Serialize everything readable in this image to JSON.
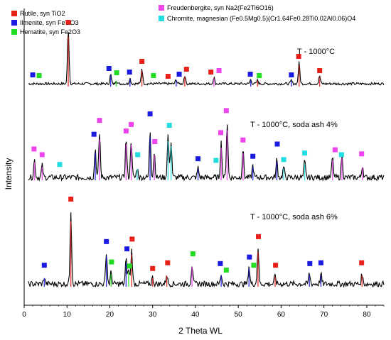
{
  "chart_data": {
    "type": "line",
    "xlabel": "2 Theta WL",
    "ylabel": "Intensity",
    "xlim": [
      0,
      84
    ],
    "x_ticks": [
      0,
      10,
      20,
      30,
      40,
      50,
      60,
      70,
      80
    ],
    "grid": false,
    "legend_position": "top",
    "legend": [
      {
        "label": "Rutile, syn TiO2",
        "color": "#e8201a"
      },
      {
        "label": "Ilmenite, syn FeTiO3",
        "color": "#1a1ae0"
      },
      {
        "label": "Hematite, syn Fe2O3",
        "color": "#22dd22"
      },
      {
        "label": "Freudenbergite, syn Na2(Fe2Ti6O16)",
        "color": "#ee44ee"
      },
      {
        "label": "Chromite, magnesian (Fe0.5Mg0.5)(Cr1.64Fe0.28Ti0.02Al0.06)O4",
        "color": "#22dddd"
      }
    ],
    "series": [
      {
        "label": "T - 1000°C",
        "baseline": 0.0,
        "noise": 0.018,
        "peaks": [
          {
            "x": 10.3,
            "h": 0.78,
            "phase": "rutile"
          },
          {
            "x": 27.5,
            "h": 0.22,
            "phase": "rutile"
          },
          {
            "x": 20.2,
            "h": 0.13,
            "phase": "ilmenite"
          },
          {
            "x": 21.5,
            "h": 0.05,
            "phase": "hematite"
          },
          {
            "x": 24.7,
            "h": 0.08,
            "phase": "ilmenite"
          },
          {
            "x": 37.5,
            "h": 0.12,
            "phase": "rutile"
          },
          {
            "x": 35.5,
            "h": 0.06,
            "phase": "ilmenite"
          },
          {
            "x": 44.3,
            "h": 0.09,
            "phase": "freudenbergite"
          },
          {
            "x": 52.9,
            "h": 0.06,
            "phase": "ilmenite"
          },
          {
            "x": 54.5,
            "h": 0.05,
            "phase": "rutile"
          },
          {
            "x": 62.4,
            "h": 0.05,
            "phase": "ilmenite"
          },
          {
            "x": 64.2,
            "h": 0.3,
            "phase": "rutile"
          },
          {
            "x": 69.0,
            "h": 0.11,
            "phase": "rutile"
          }
        ],
        "markers": [
          {
            "x": 2.0,
            "h": 0.08,
            "phase": "ilmenite"
          },
          {
            "x": 3.5,
            "h": 0.07,
            "phase": "hematite"
          },
          {
            "x": 10.3,
            "h": 0.82,
            "phase": "rutile"
          },
          {
            "x": 19.8,
            "h": 0.17,
            "phase": "ilmenite"
          },
          {
            "x": 21.6,
            "h": 0.11,
            "phase": "hematite"
          },
          {
            "x": 24.6,
            "h": 0.12,
            "phase": "ilmenite"
          },
          {
            "x": 27.5,
            "h": 0.27,
            "phase": "rutile"
          },
          {
            "x": 30.2,
            "h": 0.07,
            "phase": "hematite"
          },
          {
            "x": 33.6,
            "h": 0.06,
            "phase": "rutile"
          },
          {
            "x": 36.2,
            "h": 0.09,
            "phase": "ilmenite"
          },
          {
            "x": 37.9,
            "h": 0.16,
            "phase": "rutile"
          },
          {
            "x": 43.6,
            "h": 0.12,
            "phase": "rutile"
          },
          {
            "x": 45.5,
            "h": 0.14,
            "phase": "freudenbergite"
          },
          {
            "x": 52.8,
            "h": 0.09,
            "phase": "ilmenite"
          },
          {
            "x": 54.9,
            "h": 0.07,
            "phase": "hematite"
          },
          {
            "x": 62.4,
            "h": 0.08,
            "phase": "ilmenite"
          },
          {
            "x": 64.1,
            "h": 0.34,
            "phase": "rutile"
          },
          {
            "x": 69.0,
            "h": 0.14,
            "phase": "rutile"
          }
        ]
      },
      {
        "label": "T - 1000°C, soda ash 4%",
        "baseline": 0.0,
        "noise": 0.035,
        "peaks": [
          {
            "x": 2.4,
            "h": 0.22,
            "phase": "freudenbergite"
          },
          {
            "x": 4.2,
            "h": 0.15,
            "phase": "freudenbergite"
          },
          {
            "x": 16.6,
            "h": 0.36,
            "phase": "ilmenite"
          },
          {
            "x": 17.6,
            "h": 0.55,
            "phase": "freudenbergite"
          },
          {
            "x": 23.8,
            "h": 0.48,
            "phase": "freudenbergite"
          },
          {
            "x": 25.0,
            "h": 0.47,
            "phase": "freudenbergite"
          },
          {
            "x": 26.4,
            "h": 0.12,
            "phase": "chromite"
          },
          {
            "x": 29.4,
            "h": 0.58,
            "phase": "ilmenite"
          },
          {
            "x": 30.4,
            "h": 0.32,
            "phase": "freudenbergite"
          },
          {
            "x": 33.6,
            "h": 0.52,
            "phase": "chromite"
          },
          {
            "x": 34.3,
            "h": 0.45,
            "phase": "chromite"
          },
          {
            "x": 40.6,
            "h": 0.12,
            "phase": "ilmenite"
          },
          {
            "x": 46.0,
            "h": 0.43,
            "phase": "freudenbergite"
          },
          {
            "x": 47.4,
            "h": 0.68,
            "phase": "freudenbergite"
          },
          {
            "x": 51.1,
            "h": 0.35,
            "phase": "freudenbergite"
          },
          {
            "x": 53.4,
            "h": 0.15,
            "phase": "ilmenite"
          },
          {
            "x": 59.0,
            "h": 0.22,
            "phase": "ilmenite"
          },
          {
            "x": 60.6,
            "h": 0.13,
            "phase": "chromite"
          },
          {
            "x": 65.5,
            "h": 0.2,
            "phase": "chromite"
          },
          {
            "x": 72.0,
            "h": 0.25,
            "phase": "freudenbergite"
          },
          {
            "x": 74.2,
            "h": 0.28,
            "phase": "freudenbergite"
          },
          {
            "x": 79.0,
            "h": 0.15,
            "phase": "freudenbergite"
          }
        ],
        "markers": [
          {
            "x": 2.3,
            "h": 0.31,
            "phase": "freudenbergite"
          },
          {
            "x": 4.2,
            "h": 0.24,
            "phase": "freudenbergite"
          },
          {
            "x": 8.3,
            "h": 0.12,
            "phase": "chromite"
          },
          {
            "x": 16.3,
            "h": 0.49,
            "phase": "ilmenite"
          },
          {
            "x": 17.6,
            "h": 0.66,
            "phase": "freudenbergite"
          },
          {
            "x": 23.8,
            "h": 0.53,
            "phase": "freudenbergite"
          },
          {
            "x": 25.0,
            "h": 0.61,
            "phase": "freudenbergite"
          },
          {
            "x": 26.5,
            "h": 0.24,
            "phase": "chromite"
          },
          {
            "x": 29.4,
            "h": 0.74,
            "phase": "ilmenite"
          },
          {
            "x": 30.5,
            "h": 0.4,
            "phase": "freudenbergite"
          },
          {
            "x": 33.9,
            "h": 0.6,
            "phase": "chromite"
          },
          {
            "x": 40.6,
            "h": 0.19,
            "phase": "ilmenite"
          },
          {
            "x": 44.8,
            "h": 0.17,
            "phase": "chromite"
          },
          {
            "x": 45.9,
            "h": 0.51,
            "phase": "freudenbergite"
          },
          {
            "x": 47.2,
            "h": 0.78,
            "phase": "freudenbergite"
          },
          {
            "x": 51.1,
            "h": 0.42,
            "phase": "freudenbergite"
          },
          {
            "x": 53.4,
            "h": 0.22,
            "phase": "ilmenite"
          },
          {
            "x": 59.1,
            "h": 0.37,
            "phase": "ilmenite"
          },
          {
            "x": 60.6,
            "h": 0.18,
            "phase": "chromite"
          },
          {
            "x": 65.5,
            "h": 0.26,
            "phase": "chromite"
          },
          {
            "x": 72.6,
            "h": 0.3,
            "phase": "freudenbergite"
          },
          {
            "x": 74.1,
            "h": 0.24,
            "phase": "chromite"
          },
          {
            "x": 78.8,
            "h": 0.25,
            "phase": "freudenbergite"
          }
        ]
      },
      {
        "label": "T - 1000°C, soda ash 6%",
        "baseline": 0.0,
        "noise": 0.035,
        "peaks": [
          {
            "x": 4.7,
            "h": 0.08,
            "phase": "ilmenite"
          },
          {
            "x": 10.9,
            "h": 0.9,
            "phase": "rutile"
          },
          {
            "x": 19.2,
            "h": 0.4,
            "phase": "ilmenite"
          },
          {
            "x": 20.3,
            "h": 0.14,
            "phase": "hematite"
          },
          {
            "x": 23.8,
            "h": 0.3,
            "phase": "ilmenite"
          },
          {
            "x": 24.4,
            "h": 0.18,
            "phase": "hematite"
          },
          {
            "x": 25.1,
            "h": 0.42,
            "phase": "rutile"
          },
          {
            "x": 30.0,
            "h": 0.08,
            "phase": "rutile"
          },
          {
            "x": 33.3,
            "h": 0.12,
            "phase": "rutile"
          },
          {
            "x": 39.2,
            "h": 0.24,
            "phase": "freudenbergite"
          },
          {
            "x": 46.0,
            "h": 0.12,
            "phase": "ilmenite"
          },
          {
            "x": 52.5,
            "h": 0.22,
            "phase": "ilmenite"
          },
          {
            "x": 54.6,
            "h": 0.46,
            "phase": "rutile"
          },
          {
            "x": 58.6,
            "h": 0.1,
            "phase": "rutile"
          },
          {
            "x": 66.6,
            "h": 0.13,
            "phase": "ilmenite"
          },
          {
            "x": 69.3,
            "h": 0.12,
            "phase": "ilmenite"
          },
          {
            "x": 78.9,
            "h": 0.12,
            "phase": "rutile"
          }
        ],
        "markers": [
          {
            "x": 4.7,
            "h": 0.19,
            "phase": "ilmenite"
          },
          {
            "x": 10.9,
            "h": 1.0,
            "phase": "rutile"
          },
          {
            "x": 19.2,
            "h": 0.48,
            "phase": "ilmenite"
          },
          {
            "x": 20.4,
            "h": 0.23,
            "phase": "hematite"
          },
          {
            "x": 24.0,
            "h": 0.39,
            "phase": "ilmenite"
          },
          {
            "x": 24.6,
            "h": 0.18,
            "phase": "hematite"
          },
          {
            "x": 25.2,
            "h": 0.51,
            "phase": "rutile"
          },
          {
            "x": 30.0,
            "h": 0.15,
            "phase": "rutile"
          },
          {
            "x": 33.5,
            "h": 0.22,
            "phase": "rutile"
          },
          {
            "x": 39.4,
            "h": 0.33,
            "phase": "hematite"
          },
          {
            "x": 45.8,
            "h": 0.21,
            "phase": "ilmenite"
          },
          {
            "x": 47.2,
            "h": 0.13,
            "phase": "hematite"
          },
          {
            "x": 52.6,
            "h": 0.29,
            "phase": "ilmenite"
          },
          {
            "x": 53.6,
            "h": 0.19,
            "phase": "hematite"
          },
          {
            "x": 54.7,
            "h": 0.54,
            "phase": "rutile"
          },
          {
            "x": 58.7,
            "h": 0.19,
            "phase": "rutile"
          },
          {
            "x": 66.7,
            "h": 0.21,
            "phase": "ilmenite"
          },
          {
            "x": 69.3,
            "h": 0.22,
            "phase": "ilmenite"
          },
          {
            "x": 78.8,
            "h": 0.22,
            "phase": "rutile"
          }
        ]
      }
    ]
  }
}
